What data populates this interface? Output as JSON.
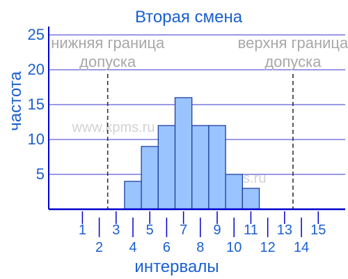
{
  "chart_data": {
    "type": "bar",
    "title": "Вторая смена",
    "xlabel": "интервалы",
    "ylabel": "частота",
    "x_ticks": [
      "1",
      "2",
      "3",
      "4",
      "5",
      "6",
      "7",
      "8",
      "9",
      "10",
      "11",
      "12",
      "13",
      "14",
      "15"
    ],
    "y_ticks": [
      "5",
      "10",
      "15",
      "20",
      "25"
    ],
    "ylim": [
      0,
      25
    ],
    "xlim": [
      -1,
      16.6
    ],
    "gridlines": "horizontal",
    "bars": [
      {
        "interval": 4,
        "value": 4
      },
      {
        "interval": 5,
        "value": 9
      },
      {
        "interval": 6,
        "value": 12
      },
      {
        "interval": 7,
        "value": 16
      },
      {
        "interval": 8,
        "value": 12
      },
      {
        "interval": 9,
        "value": 12
      },
      {
        "interval": 10,
        "value": 5
      },
      {
        "interval": 11,
        "value": 3
      }
    ],
    "limits": [
      {
        "label_line1": "нижняя граница",
        "label_line2": "допуска",
        "x": 2.5
      },
      {
        "label_line1": "верхня граница",
        "label_line2": "допуска",
        "x": 13.5
      }
    ],
    "watermarks": [
      "www.kpms.ru",
      "www.kpms.ru"
    ],
    "colors": {
      "text": "#1a5fd0",
      "axis": "#0000cc",
      "grid": "#3333cc",
      "bar_fill": "#99c4ff",
      "bar_stroke": "#1f3fa0",
      "limit_line": "#333333",
      "limit_label": "#a8a8a8"
    }
  }
}
